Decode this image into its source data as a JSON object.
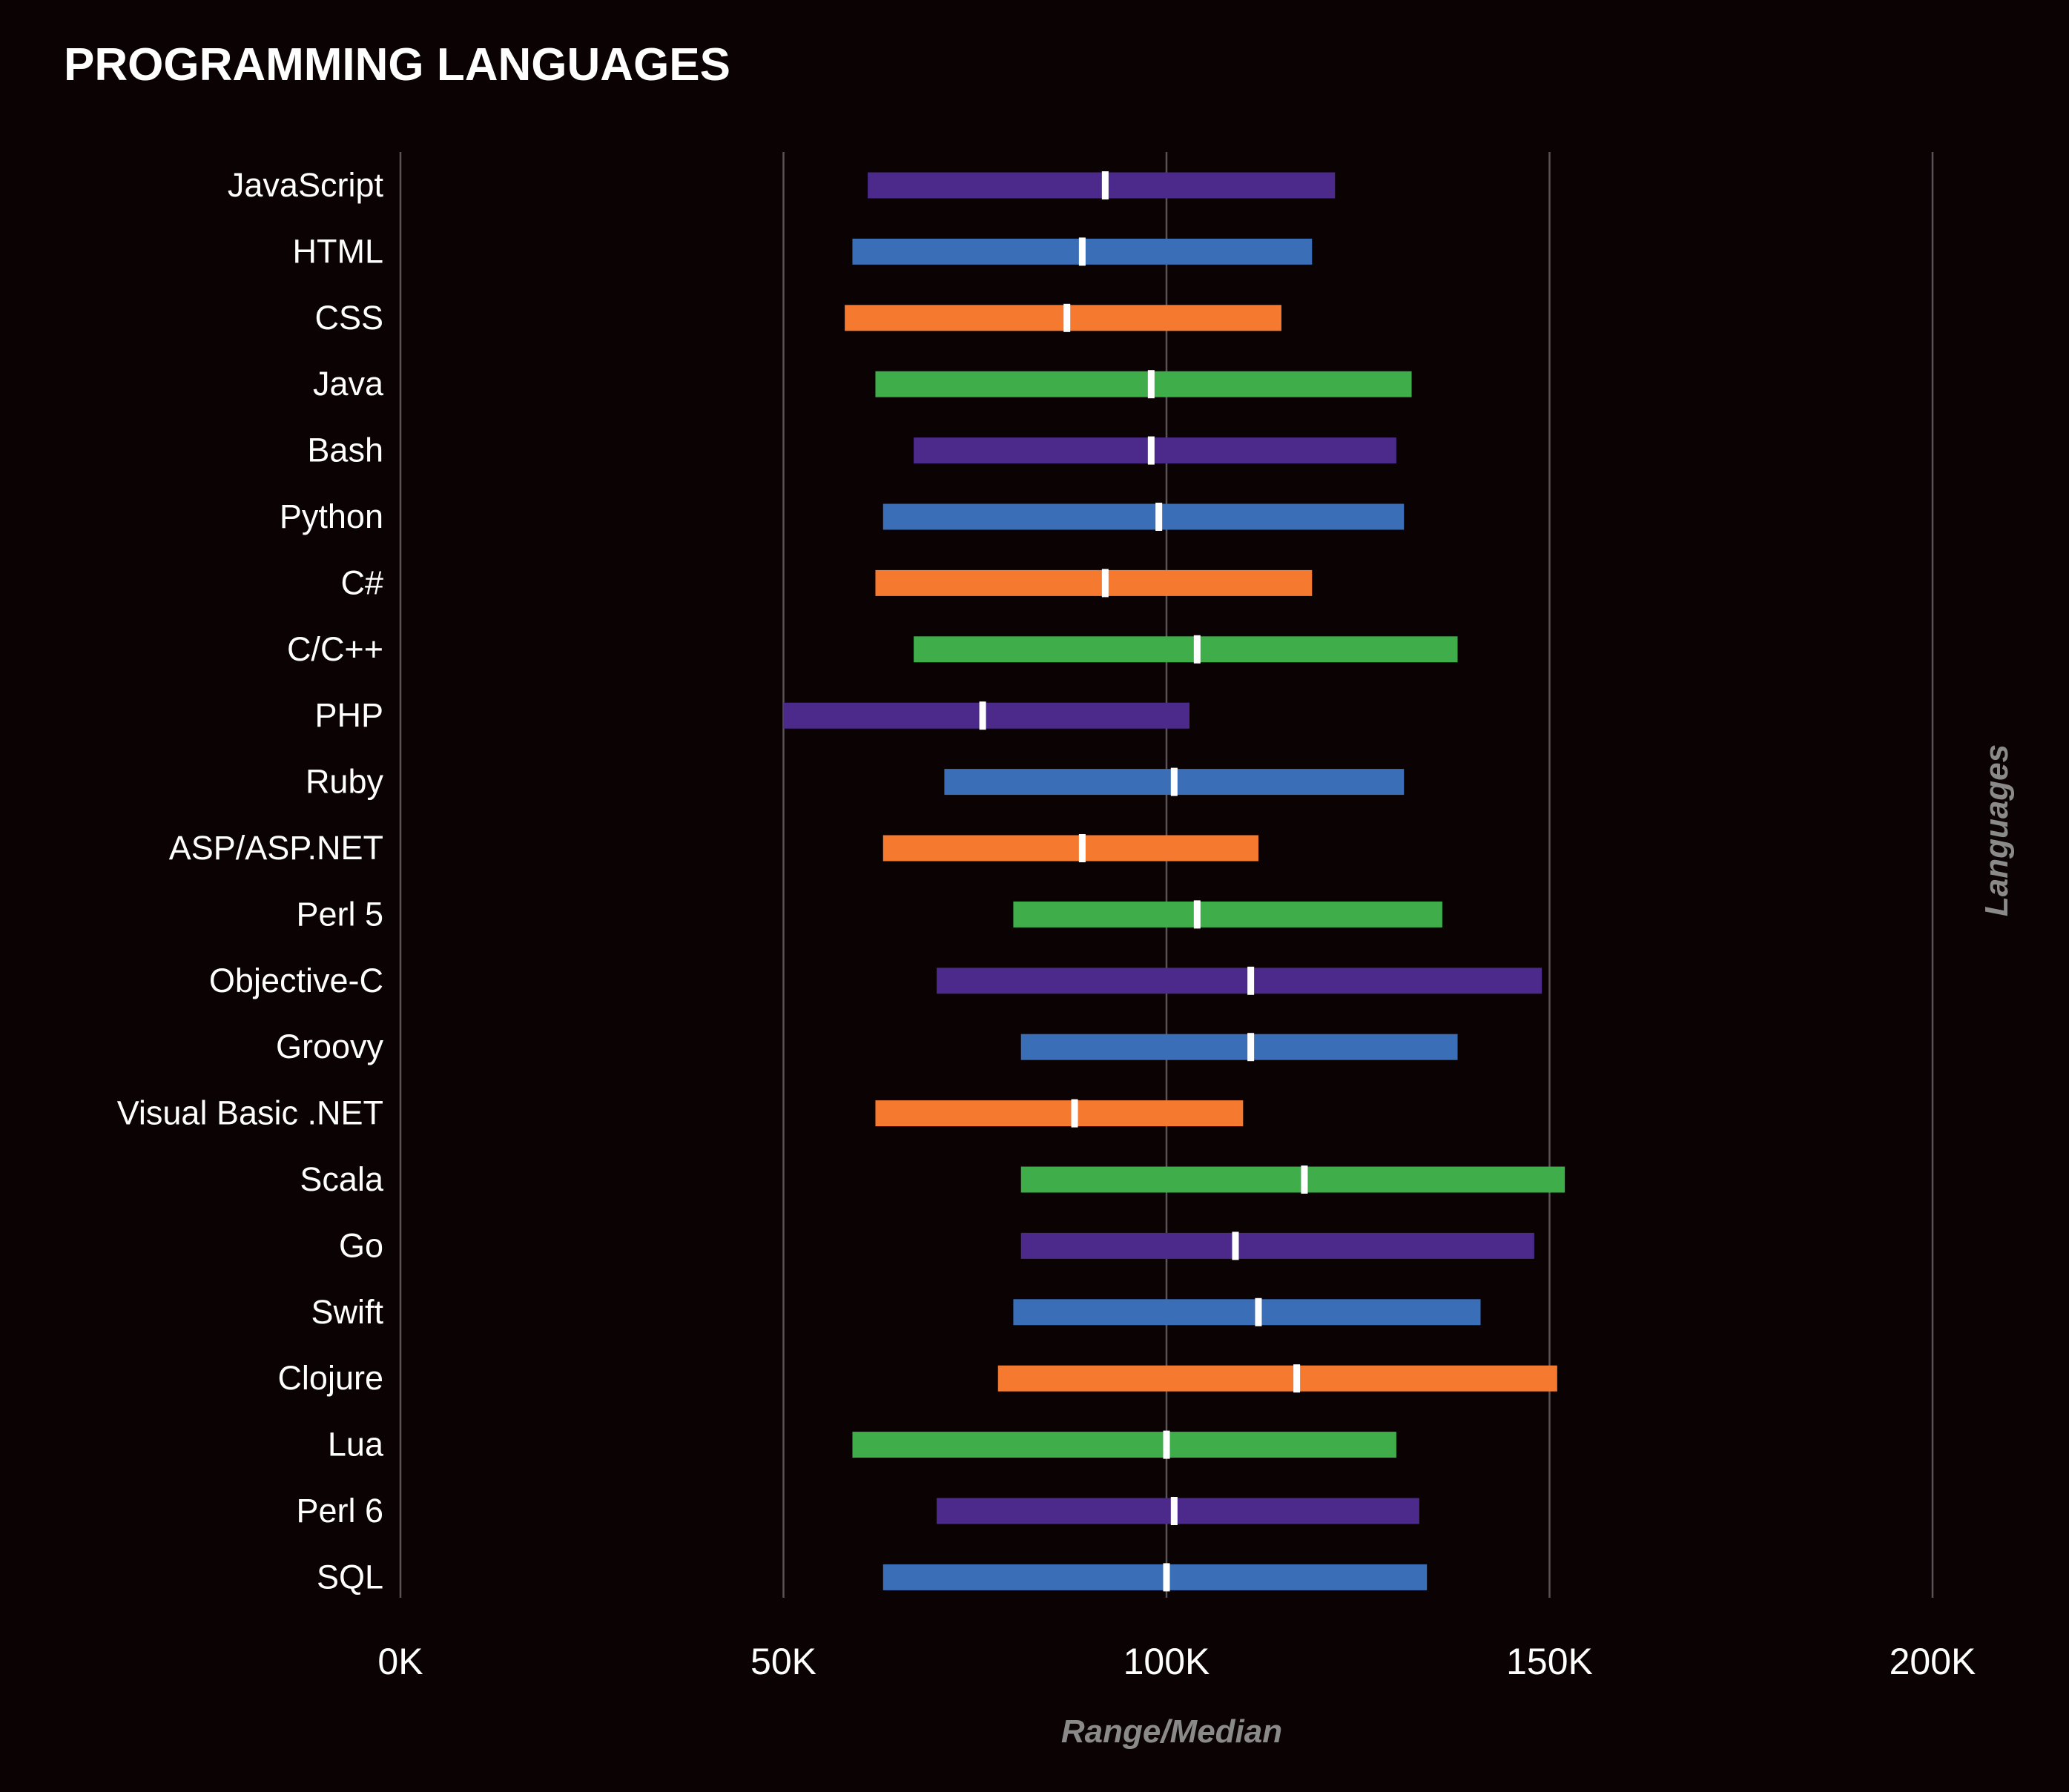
{
  "chart_data": {
    "type": "range",
    "title": "PROGRAMMING LANGUAGES",
    "xlabel": "Range/Median",
    "ylabel": "Languages",
    "xlim": [
      0,
      200000
    ],
    "xticks": [
      0,
      50000,
      100000,
      150000,
      200000
    ],
    "xtick_labels": [
      "0K",
      "50K",
      "100K",
      "150K",
      "200K"
    ],
    "grid": true,
    "series": [
      {
        "category": "JavaScript",
        "min": 61000,
        "median": 92000,
        "max": 122000,
        "color": "#4b2a8b"
      },
      {
        "category": "HTML",
        "min": 59000,
        "median": 89000,
        "max": 119000,
        "color": "#3a6fb8"
      },
      {
        "category": "CSS",
        "min": 58000,
        "median": 87000,
        "max": 115000,
        "color": "#f57a2f"
      },
      {
        "category": "Java",
        "min": 62000,
        "median": 98000,
        "max": 132000,
        "color": "#3fae4a"
      },
      {
        "category": "Bash",
        "min": 67000,
        "median": 98000,
        "max": 130000,
        "color": "#4b2a8b"
      },
      {
        "category": "Python",
        "min": 63000,
        "median": 99000,
        "max": 131000,
        "color": "#3a6fb8"
      },
      {
        "category": "C#",
        "min": 62000,
        "median": 92000,
        "max": 119000,
        "color": "#f57a2f"
      },
      {
        "category": "C/C++",
        "min": 67000,
        "median": 104000,
        "max": 138000,
        "color": "#3fae4a"
      },
      {
        "category": "PHP",
        "min": 50000,
        "median": 76000,
        "max": 103000,
        "color": "#4b2a8b"
      },
      {
        "category": "Ruby",
        "min": 71000,
        "median": 101000,
        "max": 131000,
        "color": "#3a6fb8"
      },
      {
        "category": "ASP/ASP.NET",
        "min": 63000,
        "median": 89000,
        "max": 112000,
        "color": "#f57a2f"
      },
      {
        "category": "Perl 5",
        "min": 80000,
        "median": 104000,
        "max": 136000,
        "color": "#3fae4a"
      },
      {
        "category": "Objective-C",
        "min": 70000,
        "median": 111000,
        "max": 149000,
        "color": "#4b2a8b"
      },
      {
        "category": "Groovy",
        "min": 81000,
        "median": 111000,
        "max": 138000,
        "color": "#3a6fb8"
      },
      {
        "category": "Visual Basic .NET",
        "min": 62000,
        "median": 88000,
        "max": 110000,
        "color": "#f57a2f"
      },
      {
        "category": "Scala",
        "min": 81000,
        "median": 118000,
        "max": 152000,
        "color": "#3fae4a"
      },
      {
        "category": "Go",
        "min": 81000,
        "median": 109000,
        "max": 148000,
        "color": "#4b2a8b"
      },
      {
        "category": "Swift",
        "min": 80000,
        "median": 112000,
        "max": 141000,
        "color": "#3a6fb8"
      },
      {
        "category": "Clojure",
        "min": 78000,
        "median": 117000,
        "max": 151000,
        "color": "#f57a2f"
      },
      {
        "category": "Lua",
        "min": 59000,
        "median": 100000,
        "max": 130000,
        "color": "#3fae4a"
      },
      {
        "category": "Perl 6",
        "min": 70000,
        "median": 101000,
        "max": 133000,
        "color": "#4b2a8b"
      },
      {
        "category": "SQL",
        "min": 63000,
        "median": 100000,
        "max": 134000,
        "color": "#3a6fb8"
      }
    ]
  }
}
